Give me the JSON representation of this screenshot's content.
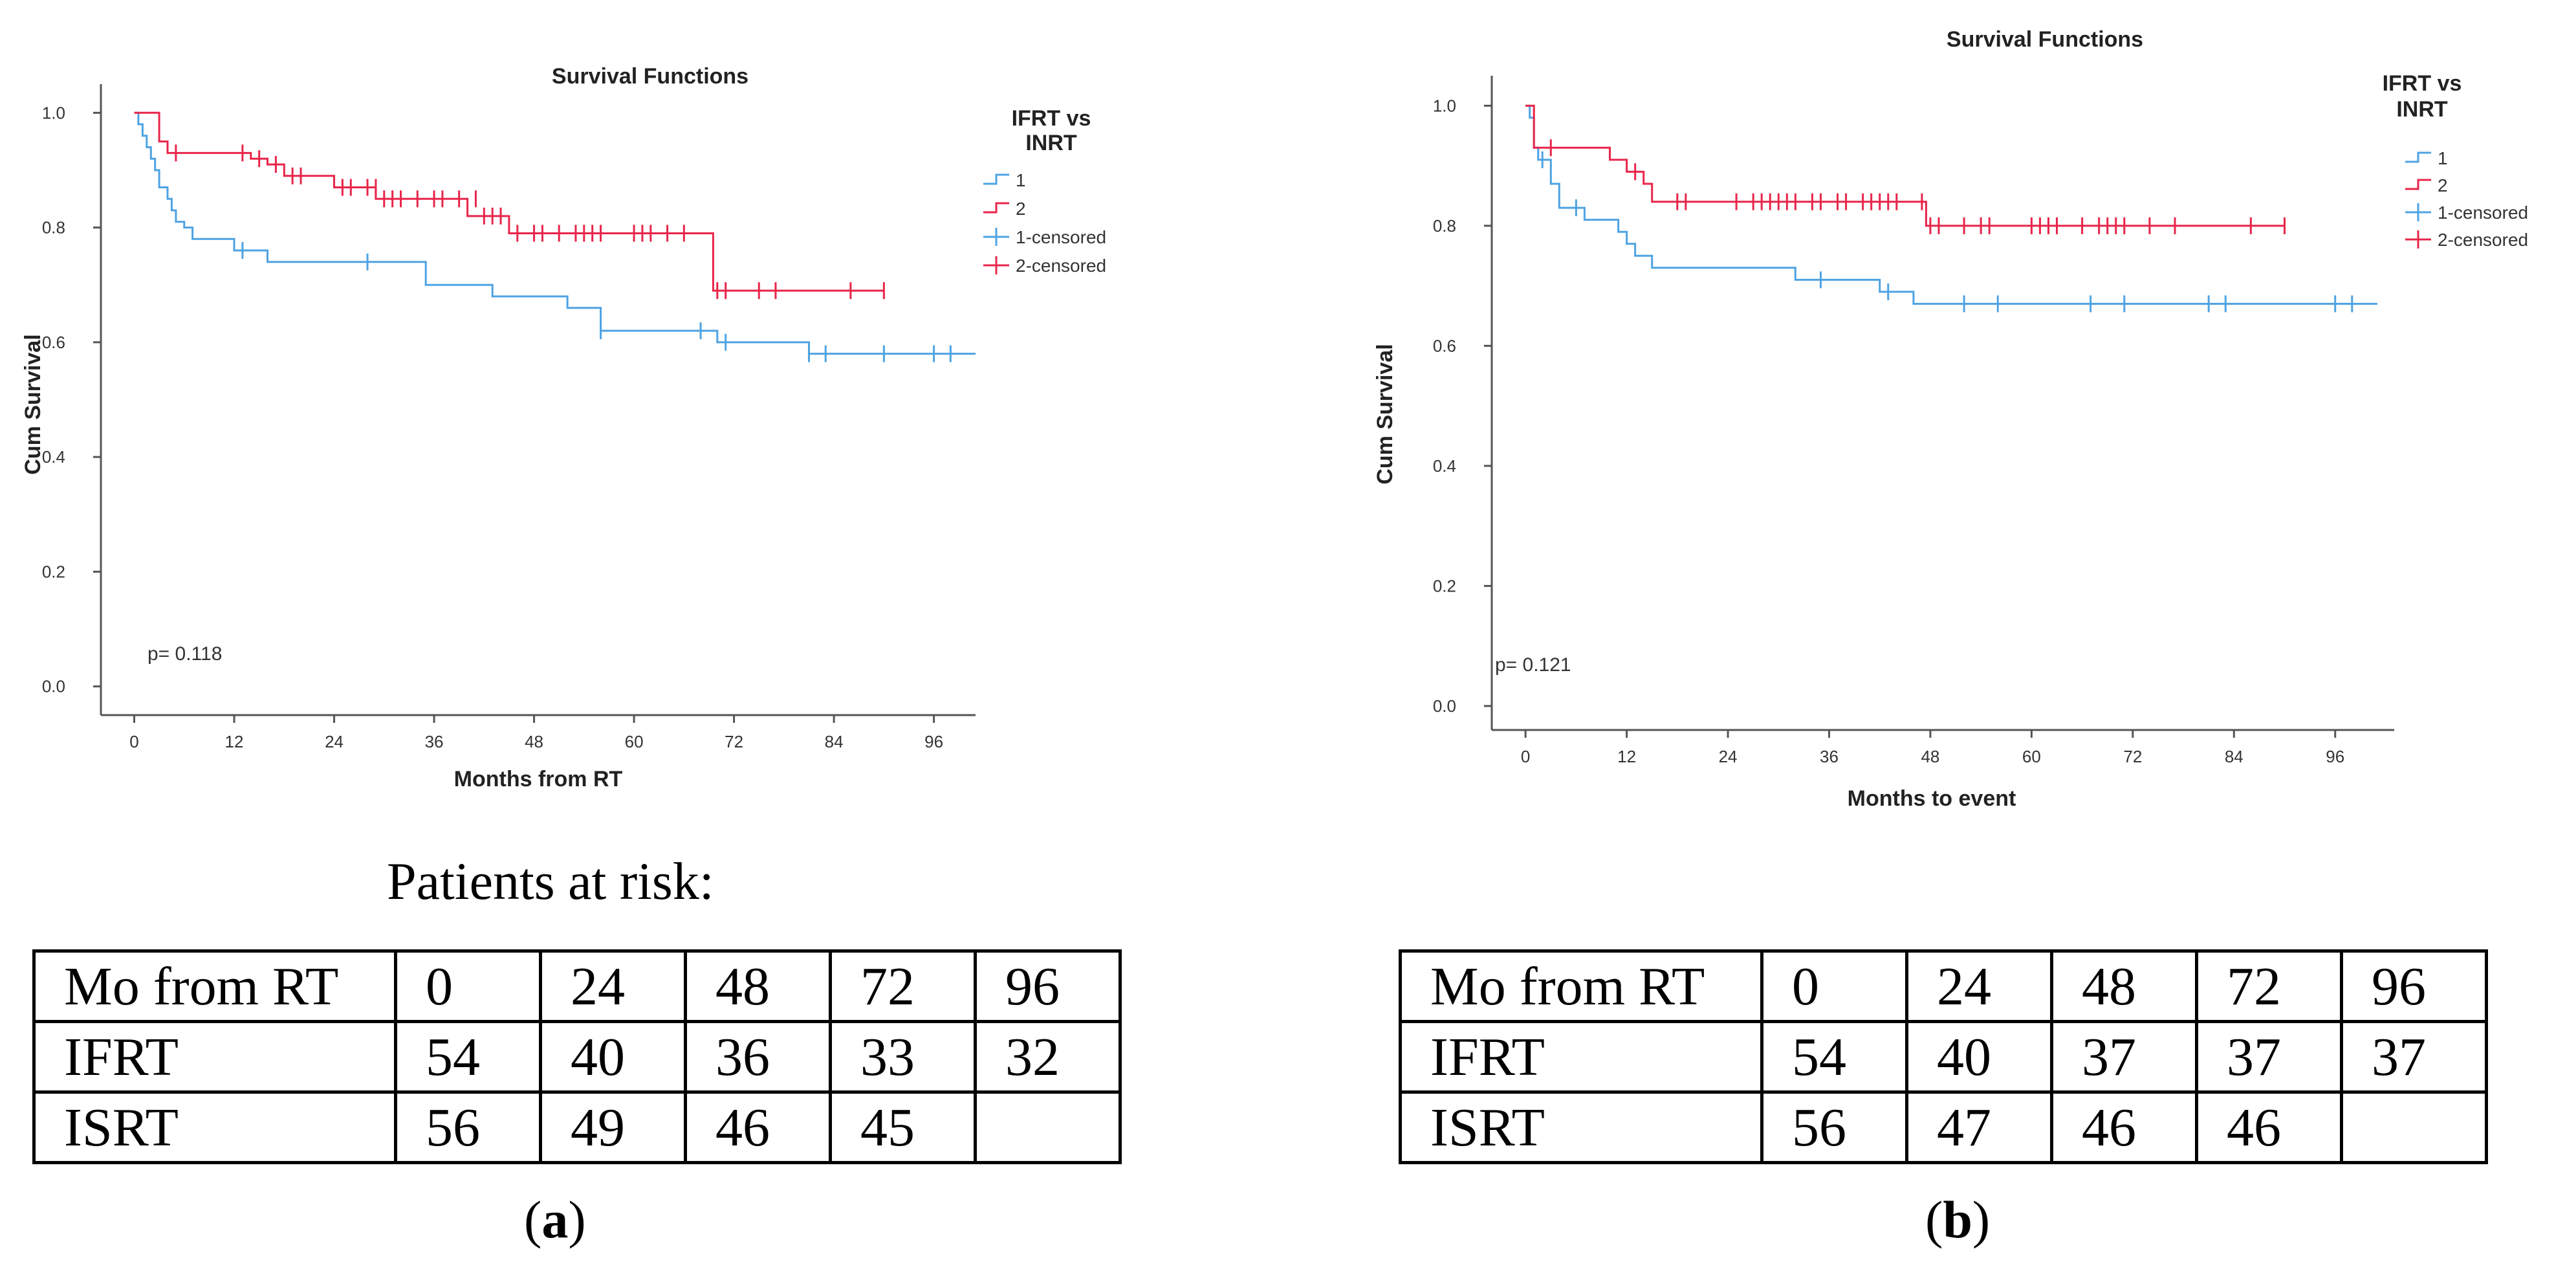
{
  "charts_meta": {
    "series_colors": {
      "1": "#4ea3e3",
      "2": "#e8254a"
    }
  },
  "chart_data": [
    {
      "type": "line",
      "subtype": "kaplan-meier",
      "title": "Survival Functions",
      "xlabel": "Months from RT",
      "ylabel": "Cum Survival",
      "xlim": [
        -4,
        101
      ],
      "ylim": [
        -0.05,
        1.05
      ],
      "xticks": [
        0,
        12,
        24,
        36,
        48,
        60,
        72,
        84,
        96
      ],
      "yticks": [
        0.0,
        0.2,
        0.4,
        0.6,
        0.8,
        1.0
      ],
      "xtick_labels": [
        "0",
        "12",
        "24",
        "36",
        "48",
        "60",
        "72",
        "84",
        "96"
      ],
      "ytick_labels": [
        "0.0",
        "0.2",
        "0.4",
        "0.6",
        "0.8",
        "1.0"
      ],
      "legend_title": "IFRT vs INRT",
      "legend_entries": [
        "1",
        "2",
        "1-censored",
        "2-censored"
      ],
      "annotation": "p= 0.118",
      "series": [
        {
          "name": "1",
          "color": "#4ea3e3",
          "steps": [
            [
              0,
              1.0
            ],
            [
              0.5,
              0.98
            ],
            [
              1,
              0.96
            ],
            [
              1.5,
              0.94
            ],
            [
              2,
              0.92
            ],
            [
              2.5,
              0.9
            ],
            [
              3,
              0.87
            ],
            [
              4,
              0.85
            ],
            [
              4.5,
              0.83
            ],
            [
              5,
              0.81
            ],
            [
              6,
              0.8
            ],
            [
              7,
              0.78
            ],
            [
              12,
              0.76
            ],
            [
              16,
              0.74
            ],
            [
              35,
              0.7
            ],
            [
              43,
              0.68
            ],
            [
              52,
              0.66
            ],
            [
              56,
              0.62
            ],
            [
              67,
              0.62
            ],
            [
              70,
              0.6
            ],
            [
              81,
              0.58
            ],
            [
              101,
              0.58
            ]
          ],
          "censored": [
            [
              13,
              0.76
            ],
            [
              28,
              0.74
            ],
            [
              56,
              0.62
            ],
            [
              68,
              0.62
            ],
            [
              71,
              0.6
            ],
            [
              81,
              0.58
            ],
            [
              83,
              0.58
            ],
            [
              90,
              0.58
            ],
            [
              96,
              0.58
            ],
            [
              98,
              0.58
            ]
          ]
        },
        {
          "name": "2",
          "color": "#e8254a",
          "steps": [
            [
              0,
              1.0
            ],
            [
              3,
              0.95
            ],
            [
              4,
              0.93
            ],
            [
              14,
              0.92
            ],
            [
              16,
              0.91
            ],
            [
              18,
              0.89
            ],
            [
              24,
              0.87
            ],
            [
              29,
              0.85
            ],
            [
              40,
              0.82
            ],
            [
              45,
              0.79
            ],
            [
              69,
              0.79
            ],
            [
              69.5,
              0.69
            ],
            [
              90,
              0.69
            ]
          ],
          "censored": [
            [
              5,
              0.93
            ],
            [
              13,
              0.93
            ],
            [
              15,
              0.92
            ],
            [
              17,
              0.91
            ],
            [
              19,
              0.89
            ],
            [
              20,
              0.89
            ],
            [
              25,
              0.87
            ],
            [
              26,
              0.87
            ],
            [
              28,
              0.87
            ],
            [
              29,
              0.87
            ],
            [
              30,
              0.85
            ],
            [
              31,
              0.85
            ],
            [
              32,
              0.85
            ],
            [
              34,
              0.85
            ],
            [
              36,
              0.85
            ],
            [
              37,
              0.85
            ],
            [
              39,
              0.85
            ],
            [
              41,
              0.85
            ],
            [
              42,
              0.82
            ],
            [
              43,
              0.82
            ],
            [
              44,
              0.82
            ],
            [
              46,
              0.79
            ],
            [
              48,
              0.79
            ],
            [
              49,
              0.79
            ],
            [
              51,
              0.79
            ],
            [
              53,
              0.79
            ],
            [
              54,
              0.79
            ],
            [
              55,
              0.79
            ],
            [
              56,
              0.79
            ],
            [
              60,
              0.79
            ],
            [
              61,
              0.79
            ],
            [
              62,
              0.79
            ],
            [
              64,
              0.79
            ],
            [
              66,
              0.79
            ],
            [
              70,
              0.69
            ],
            [
              71,
              0.69
            ],
            [
              75,
              0.69
            ],
            [
              77,
              0.69
            ],
            [
              86,
              0.69
            ],
            [
              90,
              0.69
            ]
          ]
        }
      ]
    },
    {
      "type": "line",
      "subtype": "kaplan-meier",
      "title": "Survival Functions",
      "xlabel": "Months to event",
      "ylabel": "Cum Survival",
      "xlim": [
        -4,
        103
      ],
      "ylim": [
        -0.04,
        1.05
      ],
      "xticks": [
        0,
        12,
        24,
        36,
        48,
        60,
        72,
        84,
        96
      ],
      "yticks": [
        0.0,
        0.2,
        0.4,
        0.6,
        0.8,
        1.0
      ],
      "xtick_labels": [
        "0",
        "12",
        "24",
        "36",
        "48",
        "60",
        "72",
        "84",
        "96"
      ],
      "ytick_labels": [
        "0.0",
        "0.2",
        "0.4",
        "0.6",
        "0.8",
        "1.0"
      ],
      "legend_title": "IFRT vs INRT",
      "legend_entries": [
        "1",
        "2",
        "1-censored",
        "2-censored"
      ],
      "annotation": "p= 0.121",
      "series": [
        {
          "name": "1",
          "color": "#4ea3e3",
          "steps": [
            [
              0,
              1.0
            ],
            [
              0.5,
              0.98
            ],
            [
              1,
              0.93
            ],
            [
              1.5,
              0.91
            ],
            [
              3,
              0.87
            ],
            [
              4,
              0.83
            ],
            [
              7,
              0.81
            ],
            [
              11,
              0.79
            ],
            [
              12,
              0.77
            ],
            [
              13,
              0.75
            ],
            [
              15,
              0.73
            ],
            [
              32,
              0.71
            ],
            [
              42,
              0.69
            ],
            [
              46,
              0.67
            ],
            [
              101,
              0.67
            ]
          ],
          "censored": [
            [
              2,
              0.91
            ],
            [
              6,
              0.83
            ],
            [
              35,
              0.71
            ],
            [
              43,
              0.69
            ],
            [
              52,
              0.67
            ],
            [
              56,
              0.67
            ],
            [
              67,
              0.67
            ],
            [
              71,
              0.67
            ],
            [
              81,
              0.67
            ],
            [
              83,
              0.67
            ],
            [
              96,
              0.67
            ],
            [
              98,
              0.67
            ]
          ]
        },
        {
          "name": "2",
          "color": "#e8254a",
          "steps": [
            [
              0,
              1.0
            ],
            [
              1,
              0.93
            ],
            [
              3,
              0.93
            ],
            [
              10,
              0.91
            ],
            [
              12,
              0.89
            ],
            [
              14,
              0.87
            ],
            [
              15,
              0.84
            ],
            [
              47,
              0.84
            ],
            [
              47.5,
              0.8
            ],
            [
              90,
              0.8
            ]
          ],
          "censored": [
            [
              3,
              0.93
            ],
            [
              13,
              0.89
            ],
            [
              18,
              0.84
            ],
            [
              19,
              0.84
            ],
            [
              25,
              0.84
            ],
            [
              27,
              0.84
            ],
            [
              28,
              0.84
            ],
            [
              29,
              0.84
            ],
            [
              30,
              0.84
            ],
            [
              31,
              0.84
            ],
            [
              32,
              0.84
            ],
            [
              34,
              0.84
            ],
            [
              35,
              0.84
            ],
            [
              37,
              0.84
            ],
            [
              38,
              0.84
            ],
            [
              40,
              0.84
            ],
            [
              41,
              0.84
            ],
            [
              42,
              0.84
            ],
            [
              43,
              0.84
            ],
            [
              44,
              0.84
            ],
            [
              47,
              0.84
            ],
            [
              48,
              0.8
            ],
            [
              49,
              0.8
            ],
            [
              52,
              0.8
            ],
            [
              54,
              0.8
            ],
            [
              55,
              0.8
            ],
            [
              60,
              0.8
            ],
            [
              61,
              0.8
            ],
            [
              62,
              0.8
            ],
            [
              63,
              0.8
            ],
            [
              66,
              0.8
            ],
            [
              68,
              0.8
            ],
            [
              69,
              0.8
            ],
            [
              70,
              0.8
            ],
            [
              71,
              0.8
            ],
            [
              74,
              0.8
            ],
            [
              77,
              0.8
            ],
            [
              86,
              0.8
            ],
            [
              90,
              0.8
            ]
          ]
        }
      ]
    }
  ],
  "risk_tables": [
    {
      "heading": "Patients at risk:",
      "header": [
        "Mo from RT",
        "0",
        "24",
        "48",
        "72",
        "96"
      ],
      "rows": [
        [
          "IFRT",
          "54",
          "40",
          "36",
          "33",
          "32"
        ],
        [
          "ISRT",
          "56",
          "49",
          "46",
          "45",
          ""
        ]
      ],
      "caption": {
        "open": "(",
        "letter": "a",
        "close": ")"
      }
    },
    {
      "heading": "",
      "header": [
        "Mo from RT",
        "0",
        "24",
        "48",
        "72",
        "96"
      ],
      "rows": [
        [
          "IFRT",
          "54",
          "40",
          "37",
          "37",
          "37"
        ],
        [
          "ISRT",
          "56",
          "47",
          "46",
          "46",
          ""
        ]
      ],
      "caption": {
        "open": "(",
        "letter": "b",
        "close": ")"
      }
    }
  ]
}
